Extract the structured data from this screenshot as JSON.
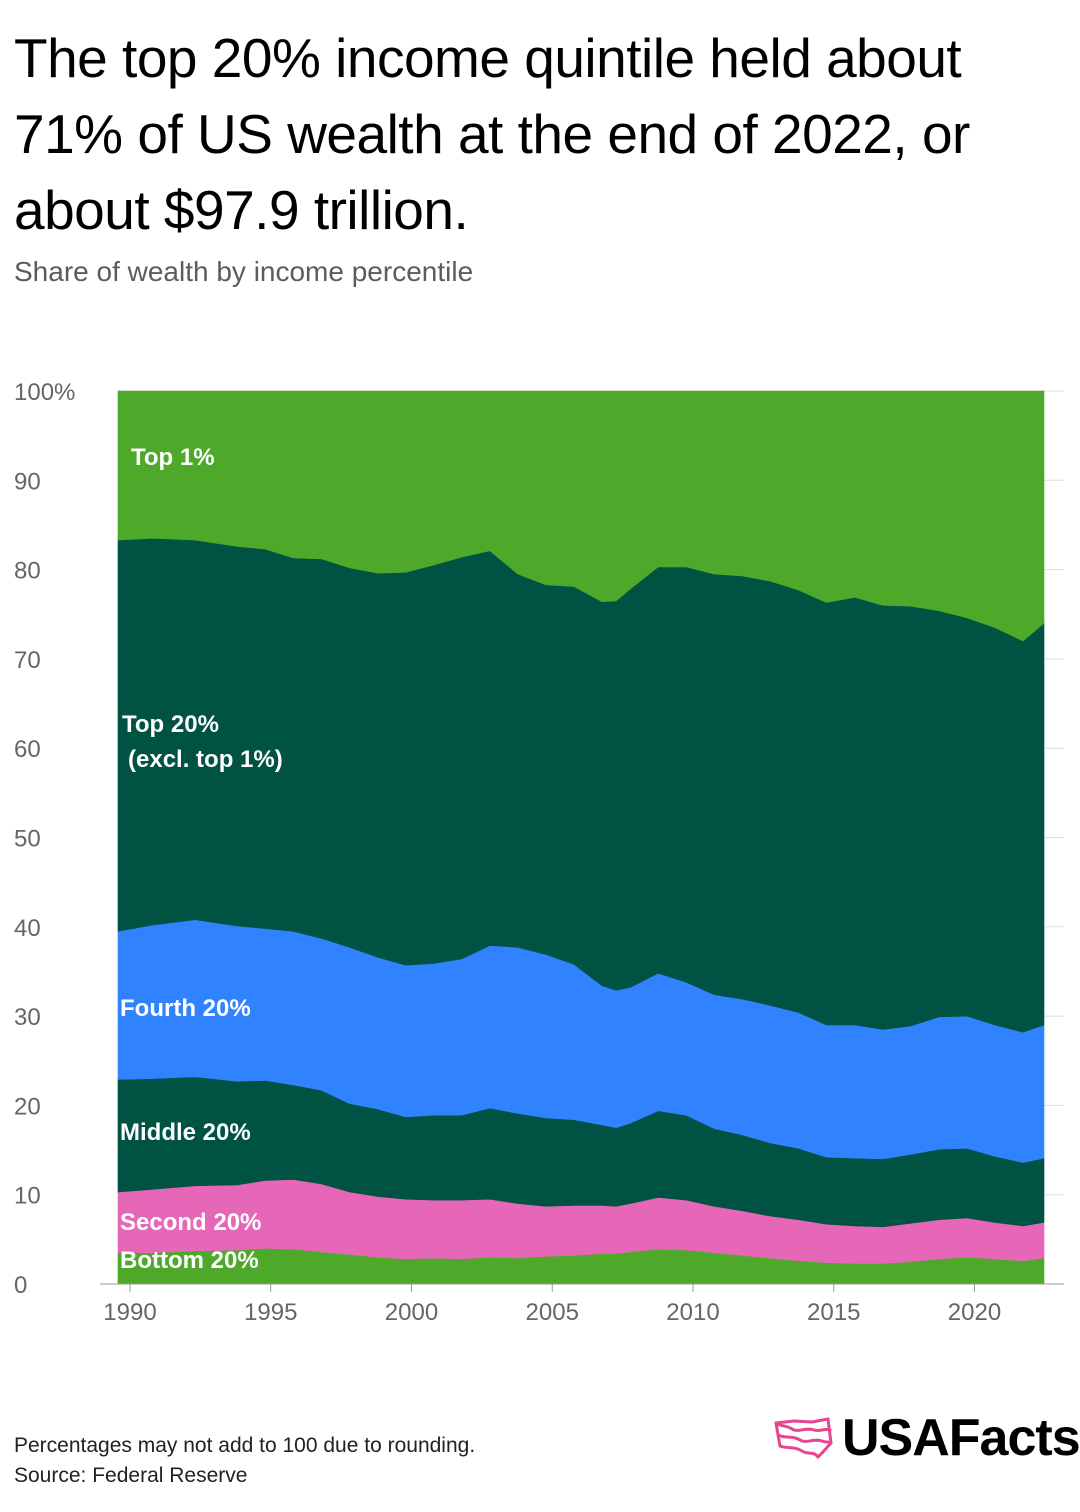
{
  "header": {
    "title": "The top 20% income quintile held about 71% of US wealth at the end of 2022, or about $97.9 trillion.",
    "subtitle": "Share of wealth by income percentile"
  },
  "footer": {
    "note": "Percentages may not add to 100 due to rounding.",
    "source": "Source: Federal Reserve",
    "brand": "USAFacts"
  },
  "colors": {
    "top1": "#4ea82a",
    "top20": "#005243",
    "fourth": "#3082fe",
    "middle": "#005243",
    "second": "#e667b8",
    "bottom": "#4ea82a",
    "brand_accent": "#e8448f"
  },
  "chart_data": {
    "type": "area",
    "stacked": true,
    "title": "Share of wealth by income percentile",
    "x": [
      1989.75,
      1991,
      1992.5,
      1994,
      1995,
      1996,
      1997,
      1998,
      1999,
      2000,
      2001,
      2002,
      2003,
      2004,
      2005,
      2006,
      2007,
      2007.5,
      2008,
      2009,
      2010,
      2011,
      2012,
      2013,
      2014,
      2015,
      2016,
      2017,
      2018,
      2019,
      2020,
      2021,
      2022,
      2022.75
    ],
    "series": [
      {
        "name": "Bottom 20%",
        "label": "Bottom 20%",
        "values": [
          3.5,
          3.5,
          3.7,
          3.8,
          4.0,
          3.9,
          3.6,
          3.3,
          3.0,
          2.8,
          2.9,
          2.8,
          3.0,
          2.9,
          3.1,
          3.2,
          3.4,
          3.4,
          3.6,
          3.9,
          3.8,
          3.5,
          3.2,
          2.9,
          2.6,
          2.4,
          2.3,
          2.3,
          2.5,
          2.8,
          3.0,
          2.8,
          2.6,
          2.9
        ]
      },
      {
        "name": "Second 20%",
        "label": "Second 20%",
        "values": [
          6.8,
          7.1,
          7.3,
          7.3,
          7.6,
          7.8,
          7.6,
          7.0,
          6.8,
          6.7,
          6.5,
          6.6,
          6.5,
          6.1,
          5.6,
          5.6,
          5.4,
          5.3,
          5.4,
          5.8,
          5.6,
          5.2,
          5.0,
          4.7,
          4.6,
          4.3,
          4.2,
          4.1,
          4.3,
          4.4,
          4.4,
          4.1,
          3.9,
          4.0
        ]
      },
      {
        "name": "Middle 20%",
        "label": "Middle 20%",
        "values": [
          12.6,
          12.4,
          12.2,
          11.6,
          11.2,
          10.6,
          10.5,
          9.9,
          9.8,
          9.2,
          9.5,
          9.5,
          10.2,
          10.1,
          9.9,
          9.6,
          9.0,
          8.8,
          9.0,
          9.7,
          9.5,
          8.7,
          8.5,
          8.2,
          8.0,
          7.5,
          7.6,
          7.6,
          7.7,
          7.9,
          7.8,
          7.4,
          7.1,
          7.2
        ]
      },
      {
        "name": "Fourth 20%",
        "label": "Fourth 20%",
        "values": [
          16.6,
          17.2,
          17.6,
          17.4,
          17.0,
          17.2,
          17.0,
          17.5,
          17.0,
          17.0,
          17.0,
          17.5,
          18.2,
          18.6,
          18.3,
          17.4,
          15.6,
          15.4,
          15.2,
          15.4,
          14.9,
          15.0,
          15.2,
          15.4,
          15.2,
          14.8,
          14.9,
          14.5,
          14.4,
          14.8,
          14.8,
          14.7,
          14.6,
          14.9
        ]
      },
      {
        "name": "Top 20% (excl. top 1%)",
        "label": "Top 20%|(excl. top 1%)",
        "values": [
          43.8,
          43.3,
          42.5,
          42.5,
          42.5,
          41.8,
          42.5,
          42.5,
          43.0,
          44.0,
          44.6,
          45.0,
          44.2,
          41.8,
          41.4,
          42.3,
          43.0,
          43.6,
          44.6,
          45.5,
          46.5,
          47.1,
          47.4,
          47.5,
          47.3,
          47.3,
          47.9,
          47.5,
          47.0,
          45.5,
          44.6,
          44.5,
          43.8,
          45.0
        ]
      },
      {
        "name": "Top 1%",
        "label": "Top 1%",
        "values": [
          16.7,
          16.5,
          16.7,
          17.4,
          17.7,
          18.7,
          18.8,
          19.8,
          20.4,
          20.3,
          19.5,
          18.6,
          17.9,
          20.5,
          21.7,
          21.9,
          23.6,
          23.5,
          22.2,
          19.7,
          19.7,
          20.5,
          20.7,
          21.3,
          22.3,
          23.7,
          23.1,
          24.0,
          24.1,
          24.6,
          25.4,
          26.5,
          28.0,
          26.0
        ]
      }
    ],
    "xticks": [
      1990,
      1995,
      2000,
      2005,
      2010,
      2015,
      2020
    ],
    "xtick_labels": [
      "1990",
      "1995",
      "2000",
      "2005",
      "2010",
      "2015",
      "2020"
    ],
    "yticks": [
      0,
      10,
      20,
      30,
      40,
      50,
      60,
      70,
      80,
      90,
      100
    ],
    "ytick_labels": [
      "0",
      "10",
      "20",
      "30",
      "40",
      "50",
      "60",
      "70",
      "80",
      "90",
      "100%"
    ],
    "xlim": [
      1989,
      2024
    ],
    "ylim": [
      0,
      100
    ],
    "xlabel": "",
    "ylabel": "",
    "grid": true,
    "legend": "inline"
  }
}
